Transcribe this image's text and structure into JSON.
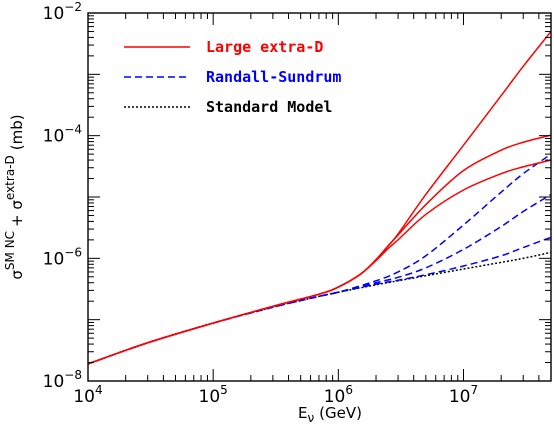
{
  "chart_data": {
    "type": "line",
    "xlabel": "E",
    "xlabel_sub": "ν",
    "xlabel_unit": "(GeV)",
    "ylabel": "σ",
    "ylabel_sup1": "SM NC",
    "ylabel_plus": "+ σ",
    "ylabel_sup2": "extra-D",
    "ylabel_unit": "(mb)",
    "x_scale": "log",
    "y_scale": "log",
    "xlim": [
      10000,
      50000000
    ],
    "ylim": [
      1e-08,
      0.01
    ],
    "x_ticks": [
      {
        "value": 10000,
        "base": "10",
        "exp": "4"
      },
      {
        "value": 100000,
        "base": "10",
        "exp": "5"
      },
      {
        "value": 1000000,
        "base": "10",
        "exp": "6"
      },
      {
        "value": 10000000,
        "base": "10",
        "exp": "7"
      }
    ],
    "y_ticks": [
      {
        "value": 1e-08,
        "base": "10",
        "exp": "−8"
      },
      {
        "value": 1e-06,
        "base": "10",
        "exp": "−6"
      },
      {
        "value": 0.0001,
        "base": "10",
        "exp": "−4"
      },
      {
        "value": 0.01,
        "base": "10",
        "exp": "−2"
      }
    ],
    "grid": false,
    "legend_position": "top-left",
    "legend": [
      {
        "label": "Large extra-D",
        "color": "#ff0000",
        "style": "solid"
      },
      {
        "label": "Randall-Sundrum",
        "color": "#0000ff",
        "style": "dashed"
      },
      {
        "label": "Standard Model",
        "color": "#000000",
        "style": "dotted"
      }
    ],
    "series": [
      {
        "group": "Large extra-D",
        "color": "#ff0000",
        "style": "solid",
        "x": [
          10000,
          30000,
          100000,
          300000,
          700000,
          1000000,
          1500000,
          2000000,
          2500000,
          3000000,
          5000000,
          10000000,
          20000000,
          30000000,
          50000000
        ],
        "y": [
          1.9e-08,
          4.2e-08,
          8.8e-08,
          1.65e-07,
          2.6e-07,
          3.4e-07,
          5.5e-07,
          9.5e-07,
          1.6e-06,
          2.5e-06,
          1.1e-05,
          7e-05,
          0.00045,
          0.00135,
          0.005
        ]
      },
      {
        "group": "Large extra-D",
        "color": "#ff0000",
        "style": "solid",
        "x": [
          10000,
          30000,
          100000,
          300000,
          700000,
          1000000,
          1500000,
          2000000,
          2500000,
          3000000,
          5000000,
          10000000,
          20000000,
          30000000,
          50000000
        ],
        "y": [
          1.9e-08,
          4.2e-08,
          8.8e-08,
          1.65e-07,
          2.6e-07,
          3.4e-07,
          5.5e-07,
          9.5e-07,
          1.6e-06,
          2.4e-06,
          7.5e-06,
          2.7e-05,
          5.8e-05,
          7.8e-05,
          0.000102
        ]
      },
      {
        "group": "Large extra-D",
        "color": "#ff0000",
        "style": "solid",
        "x": [
          10000,
          30000,
          100000,
          300000,
          700000,
          1000000,
          1500000,
          2000000,
          2500000,
          3000000,
          5000000,
          10000000,
          20000000,
          30000000,
          50000000
        ],
        "y": [
          1.9e-08,
          4.2e-08,
          8.8e-08,
          1.65e-07,
          2.6e-07,
          3.4e-07,
          5.5e-07,
          9.2e-07,
          1.45e-06,
          2e-06,
          5.2e-06,
          1.3e-05,
          2.4e-05,
          3.1e-05,
          4e-05
        ]
      },
      {
        "group": "Randall-Sundrum",
        "color": "#0000ff",
        "style": "dashed",
        "x": [
          10000,
          30000,
          100000,
          300000,
          700000,
          1000000,
          2000000,
          3000000,
          5000000,
          10000000,
          20000000,
          30000000,
          50000000
        ],
        "y": [
          1.9e-08,
          4.2e-08,
          8.8e-08,
          1.6e-07,
          2.4e-07,
          2.8e-07,
          4.3e-07,
          6e-07,
          1.1e-06,
          3.5e-06,
          1.2e-05,
          2.4e-05,
          5e-05
        ]
      },
      {
        "group": "Randall-Sundrum",
        "color": "#0000ff",
        "style": "dashed",
        "x": [
          10000,
          30000,
          100000,
          300000,
          700000,
          1000000,
          2000000,
          3000000,
          5000000,
          10000000,
          20000000,
          30000000,
          50000000
        ],
        "y": [
          1.9e-08,
          4.2e-08,
          8.8e-08,
          1.6e-07,
          2.4e-07,
          2.8e-07,
          4e-07,
          4.9e-07,
          7e-07,
          1.4e-06,
          3.3e-06,
          5.8e-06,
          1.1e-05
        ]
      },
      {
        "group": "Randall-Sundrum",
        "color": "#0000ff",
        "style": "dashed",
        "x": [
          10000,
          30000,
          100000,
          300000,
          700000,
          1000000,
          2000000,
          3000000,
          5000000,
          10000000,
          20000000,
          30000000,
          50000000
        ],
        "y": [
          1.9e-08,
          4.2e-08,
          8.8e-08,
          1.6e-07,
          2.4e-07,
          2.8e-07,
          3.8e-07,
          4.4e-07,
          5.4e-07,
          7.5e-07,
          1.1e-06,
          1.5e-06,
          2.2e-06
        ]
      },
      {
        "group": "Standard Model",
        "color": "#000000",
        "style": "dotted",
        "x": [
          10000,
          30000,
          100000,
          300000,
          700000,
          1000000,
          2000000,
          3000000,
          5000000,
          10000000,
          20000000,
          30000000,
          50000000
        ],
        "y": [
          1.9e-08,
          4.2e-08,
          8.8e-08,
          1.6e-07,
          2.4e-07,
          2.8e-07,
          3.7e-07,
          4.3e-07,
          5.2e-07,
          6.7e-07,
          8.6e-07,
          1e-06,
          1.25e-06
        ]
      }
    ]
  }
}
